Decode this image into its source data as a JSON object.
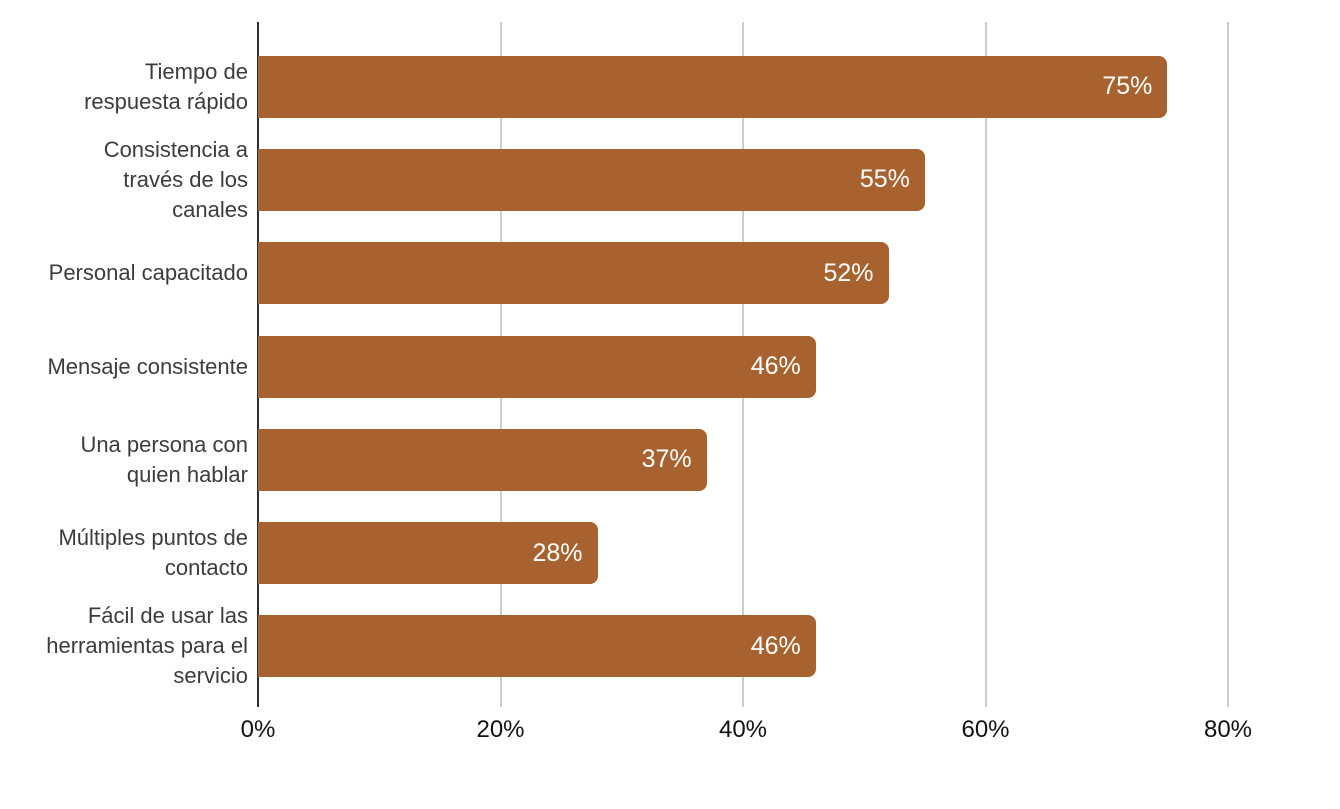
{
  "chart_data": {
    "type": "bar",
    "orientation": "horizontal",
    "title": "",
    "xlabel": "",
    "ylabel": "",
    "categories": [
      "Tiempo de respuesta rápido",
      "Consistencia a través de los canales",
      "Personal capacitado",
      "Mensaje consistente",
      "Una persona con quien hablar",
      "Múltiples puntos de contacto",
      "Fácil de usar las herramientas para el servicio"
    ],
    "category_label_lines": [
      [
        "Tiempo de",
        "respuesta rápido"
      ],
      [
        "Consistencia a",
        "través de los",
        "canales"
      ],
      [
        "Personal capacitado"
      ],
      [
        "Mensaje consistente"
      ],
      [
        "Una persona con",
        "quien hablar"
      ],
      [
        "Múltiples puntos de",
        "contacto"
      ],
      [
        "Fácil de usar las",
        "herramientas para el",
        "servicio"
      ]
    ],
    "values": [
      75,
      55,
      52,
      46,
      37,
      28,
      46
    ],
    "value_labels": [
      "75%",
      "55%",
      "52%",
      "46%",
      "37%",
      "28%",
      "46%"
    ],
    "x_axis": {
      "tick_values": [
        0,
        20,
        40,
        60,
        80
      ],
      "tick_labels": [
        "0%",
        "20%",
        "40%",
        "60%",
        "80%"
      ],
      "range": [
        0,
        83
      ]
    },
    "grid": true,
    "legend_position": "none",
    "colors": {
      "bar": "#A8622F",
      "value_label": "#FFFFFF",
      "gridline": "#CCCCCC",
      "axis_baseline": "#2E2E2E",
      "category_label": "#3C3C3C",
      "tick_label": "#111111",
      "background": "#FFFFFF"
    }
  }
}
